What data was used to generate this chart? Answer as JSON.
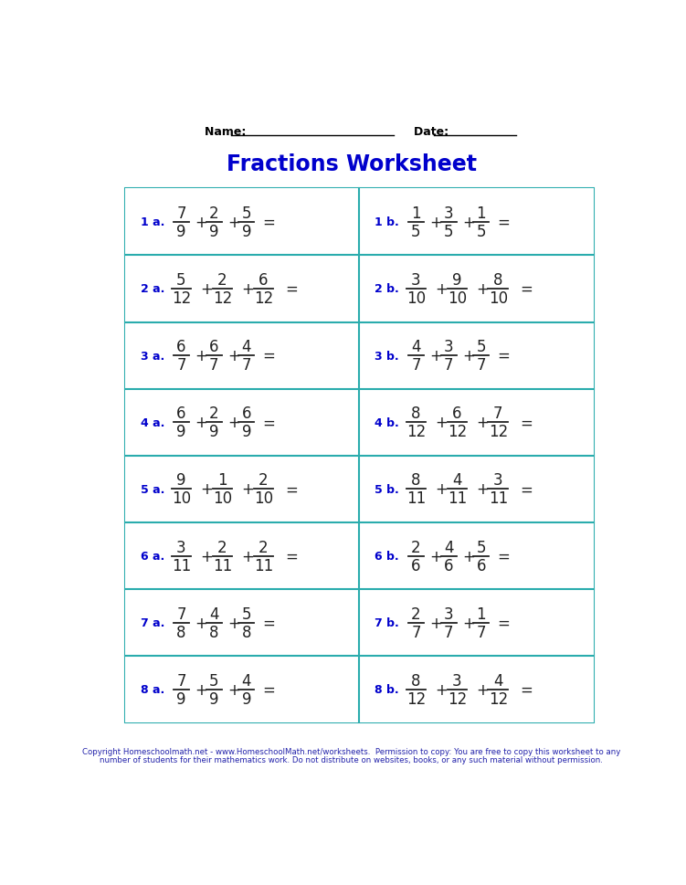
{
  "title": "Fractions Worksheet",
  "title_color": "#0000CC",
  "title_fontsize": 17,
  "name_label": "Name: ",
  "date_label": "Date: ",
  "grid_color": "#2AACAD",
  "label_color": "#0000CC",
  "fraction_color": "#222222",
  "rows": 8,
  "cols": 2,
  "problems": [
    {
      "label": "1 a.",
      "fracs": [
        [
          "7",
          "9"
        ],
        [
          "2",
          "9"
        ],
        [
          "5",
          "9"
        ]
      ]
    },
    {
      "label": "1 b.",
      "fracs": [
        [
          "1",
          "5"
        ],
        [
          "3",
          "5"
        ],
        [
          "1",
          "5"
        ]
      ]
    },
    {
      "label": "2 a.",
      "fracs": [
        [
          "5",
          "12"
        ],
        [
          "2",
          "12"
        ],
        [
          "6",
          "12"
        ]
      ]
    },
    {
      "label": "2 b.",
      "fracs": [
        [
          "3",
          "10"
        ],
        [
          "9",
          "10"
        ],
        [
          "8",
          "10"
        ]
      ]
    },
    {
      "label": "3 a.",
      "fracs": [
        [
          "6",
          "7"
        ],
        [
          "6",
          "7"
        ],
        [
          "4",
          "7"
        ]
      ]
    },
    {
      "label": "3 b.",
      "fracs": [
        [
          "4",
          "7"
        ],
        [
          "3",
          "7"
        ],
        [
          "5",
          "7"
        ]
      ]
    },
    {
      "label": "4 a.",
      "fracs": [
        [
          "6",
          "9"
        ],
        [
          "2",
          "9"
        ],
        [
          "6",
          "9"
        ]
      ]
    },
    {
      "label": "4 b.",
      "fracs": [
        [
          "8",
          "12"
        ],
        [
          "6",
          "12"
        ],
        [
          "7",
          "12"
        ]
      ]
    },
    {
      "label": "5 a.",
      "fracs": [
        [
          "9",
          "10"
        ],
        [
          "1",
          "10"
        ],
        [
          "2",
          "10"
        ]
      ]
    },
    {
      "label": "5 b.",
      "fracs": [
        [
          "8",
          "11"
        ],
        [
          "4",
          "11"
        ],
        [
          "3",
          "11"
        ]
      ]
    },
    {
      "label": "6 a.",
      "fracs": [
        [
          "3",
          "11"
        ],
        [
          "2",
          "11"
        ],
        [
          "2",
          "11"
        ]
      ]
    },
    {
      "label": "6 b.",
      "fracs": [
        [
          "2",
          "6"
        ],
        [
          "4",
          "6"
        ],
        [
          "5",
          "6"
        ]
      ]
    },
    {
      "label": "7 a.",
      "fracs": [
        [
          "7",
          "8"
        ],
        [
          "4",
          "8"
        ],
        [
          "5",
          "8"
        ]
      ]
    },
    {
      "label": "7 b.",
      "fracs": [
        [
          "2",
          "7"
        ],
        [
          "3",
          "7"
        ],
        [
          "1",
          "7"
        ]
      ]
    },
    {
      "label": "8 a.",
      "fracs": [
        [
          "7",
          "9"
        ],
        [
          "5",
          "9"
        ],
        [
          "4",
          "9"
        ]
      ]
    },
    {
      "label": "8 b.",
      "fracs": [
        [
          "8",
          "12"
        ],
        [
          "3",
          "12"
        ],
        [
          "4",
          "12"
        ]
      ]
    }
  ],
  "footer_line1": "Copyright Homeschoolmath.net - www.HomeschoolMath.net/worksheets.  Permission to copy: You are free to copy this worksheet to any",
  "footer_line2": "number of students for their mathematics work. Do not distribute on websites, books, or any such material without permission."
}
